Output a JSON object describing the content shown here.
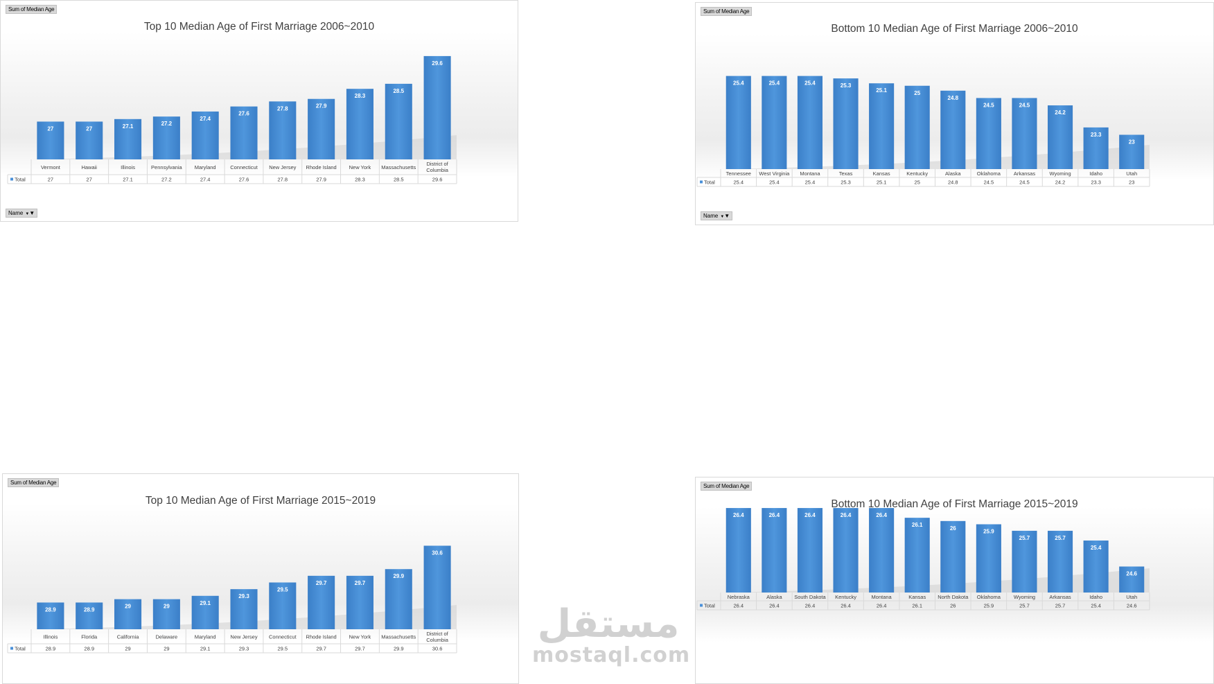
{
  "chart_data": [
    {
      "type": "bar",
      "title": "Top 10 Median Age of First Marriage 2006~2010",
      "value_field": "Sum of Median Age",
      "axis_field": "Name",
      "series": [
        {
          "name": "Total",
          "values": [
            27,
            27,
            27.1,
            27.2,
            27.4,
            27.6,
            27.8,
            27.9,
            28.3,
            28.5,
            29.6
          ]
        }
      ],
      "categories": [
        "Vermont",
        "Hawaii",
        "Illinois",
        "Pennsylvania",
        "Maryland",
        "Connecticut",
        "New Jersey",
        "Rhode Island",
        "New York",
        "Massachusetts",
        "District of Columbia"
      ],
      "table_values": [
        "27",
        "27",
        "27.1",
        "27.2",
        "27.4",
        "27.6",
        "27.8",
        "27.9",
        "28.3",
        "28.5",
        "29.6"
      ],
      "ylim": [
        25.5,
        29.9
      ],
      "color": "#4a90d9"
    },
    {
      "type": "bar",
      "title": "Bottom 10 Median Age of First Marriage 2006~2010",
      "value_field": "Sum of Median Age",
      "axis_field": "Name",
      "series": [
        {
          "name": "Total",
          "values": [
            25.4,
            25.4,
            25.4,
            25.3,
            25.1,
            25,
            24.8,
            24.5,
            24.5,
            24.2,
            23.3,
            23
          ]
        }
      ],
      "categories": [
        "Tennessee",
        "West Virginia",
        "Montana",
        "Texas",
        "Kansas",
        "Kentucky",
        "Alaska",
        "Oklahoma",
        "Arkansas",
        "Wyoming",
        "Idaho",
        "Utah"
      ],
      "table_values": [
        "25.4",
        "25.4",
        "25.4",
        "25.3",
        "25.1",
        "25",
        "24.8",
        "24.5",
        "24.5",
        "24.2",
        "23.3",
        "23"
      ],
      "ylim": [
        21.6,
        25.7
      ],
      "color": "#4a90d9"
    },
    {
      "type": "bar",
      "title": "Top 10 Median Age of First Marriage 2015~2019",
      "value_field": "Sum of Median Age",
      "axis_field": "Name",
      "series": [
        {
          "name": "Total",
          "values": [
            28.9,
            28.9,
            29,
            29,
            29.1,
            29.3,
            29.5,
            29.7,
            29.7,
            29.9,
            30.6
          ]
        }
      ],
      "categories": [
        "Illinois",
        "Florida",
        "California",
        "Delaware",
        "Maryland",
        "New Jersey",
        "Connecticut",
        "Rhode Island",
        "New York",
        "Massachusetts",
        "District of Columbia"
      ],
      "table_values": [
        "28.9",
        "28.9",
        "29",
        "29",
        "29.1",
        "29.3",
        "29.5",
        "29.7",
        "29.7",
        "29.9",
        "30.6"
      ],
      "ylim": [
        28.1,
        30.9
      ],
      "color": "#4a90d9"
    },
    {
      "type": "bar",
      "title": "Bottom 10 Median Age of First Marriage 2015~2019",
      "value_field": "Sum of Median Age",
      "axis_field": "Name",
      "series": [
        {
          "name": "Total",
          "values": [
            26.4,
            26.4,
            26.4,
            26.4,
            26.4,
            26.1,
            26,
            25.9,
            25.7,
            25.7,
            25.4,
            24.6
          ]
        }
      ],
      "categories": [
        "Nebraska",
        "Alaska",
        "South Dakota",
        "Kentucky",
        "Montana",
        "Kansas",
        "North Dakota",
        "Oklahoma",
        "Wyoming",
        "Arkansas",
        "Idaho",
        "Utah"
      ],
      "table_values": [
        "26.4",
        "26.4",
        "26.4",
        "26.4",
        "26.4",
        "26.1",
        "26",
        "25.9",
        "25.7",
        "25.7",
        "25.4",
        "24.6"
      ],
      "ylim": [
        23.8,
        26.7
      ],
      "color": "#4a90d9"
    }
  ],
  "watermark": {
    "arabic": "مستقل",
    "latin": "mostaql.com"
  }
}
